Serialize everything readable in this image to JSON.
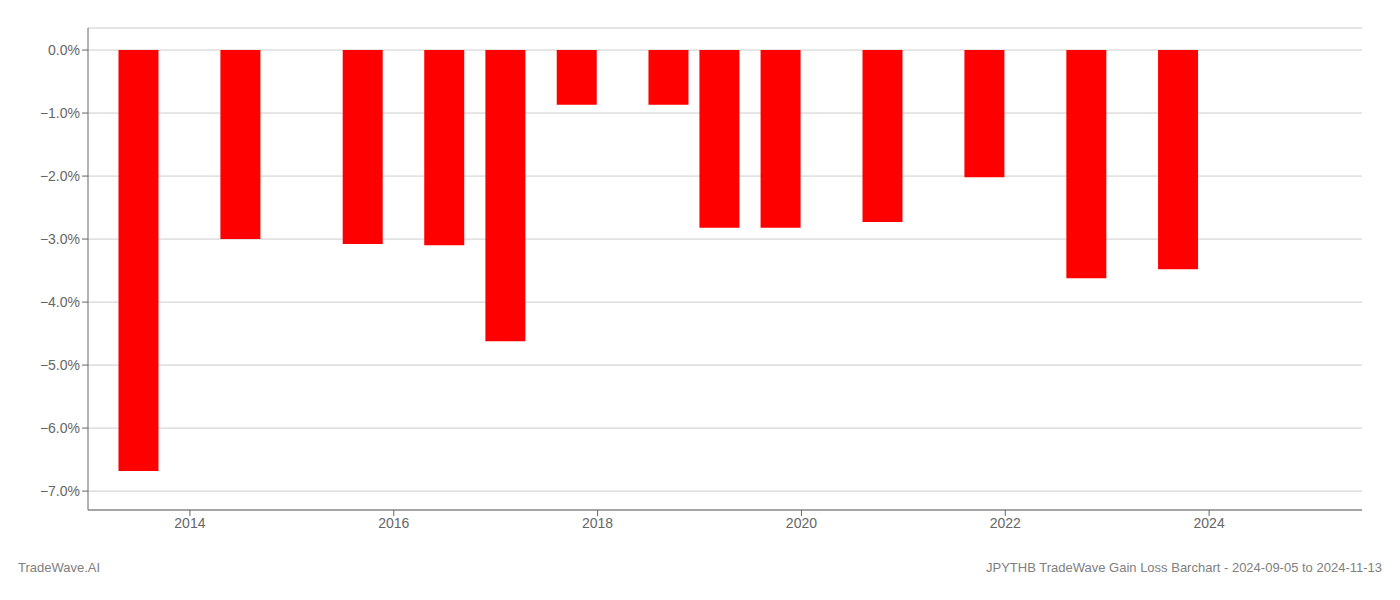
{
  "chart_data": {
    "type": "bar",
    "x": [
      2013.5,
      2014.5,
      2015.7,
      2016.5,
      2017.1,
      2017.8,
      2018.7,
      2019.2,
      2019.8,
      2020.8,
      2021.8,
      2022.8,
      2023.7
    ],
    "values": [
      -6.68,
      -3.0,
      -3.08,
      -3.1,
      -4.62,
      -0.87,
      -0.87,
      -2.82,
      -2.82,
      -2.73,
      -2.02,
      -3.62,
      -3.48
    ],
    "color": "#FF0000",
    "xlim": [
      2013.0,
      2025.5
    ],
    "xticks": [
      2014,
      2016,
      2018,
      2020,
      2022,
      2024
    ],
    "ylim": [
      -7.3,
      0.35
    ],
    "yticks": [
      {
        "value": 0.0,
        "label": "0.0%"
      },
      {
        "value": -1.0,
        "label": "−1.0%"
      },
      {
        "value": -2.0,
        "label": "−2.0%"
      },
      {
        "value": -3.0,
        "label": "−3.0%"
      },
      {
        "value": -4.0,
        "label": "−4.0%"
      },
      {
        "value": -5.0,
        "label": "−5.0%"
      },
      {
        "value": -6.0,
        "label": "−6.0%"
      },
      {
        "value": -7.0,
        "label": "−7.0%"
      }
    ],
    "grid": "y",
    "annotations": [
      "TradeWave.AI",
      "JPYTHB TradeWave Gain Loss Barchart - 2024-09-05 to 2024-11-13"
    ]
  }
}
